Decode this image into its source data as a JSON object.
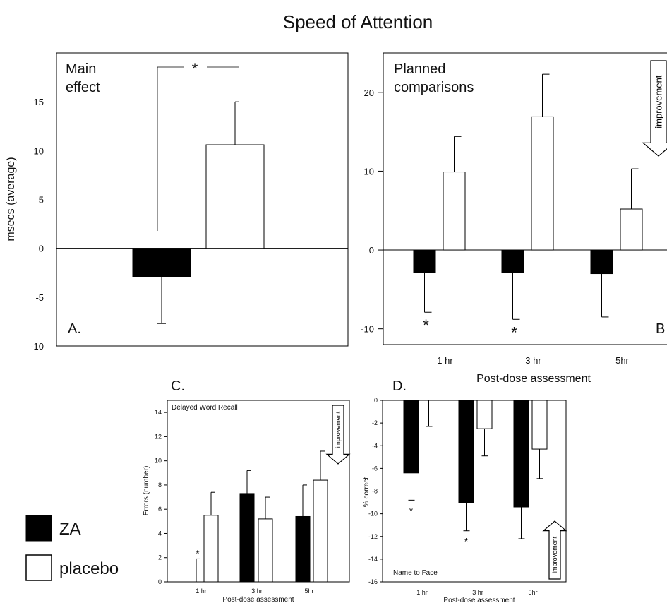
{
  "figure_title": "Speed of Attention",
  "legend": {
    "items": [
      {
        "label": "ZA",
        "color": "#000000"
      },
      {
        "label": "placebo",
        "color": "#ffffff"
      }
    ]
  },
  "improvement_label": "improvement",
  "chart_data": [
    {
      "id": "A",
      "type": "bar",
      "panel_letter": "A.",
      "annotation": "Main\neffect",
      "ylabel": "msecs (average)",
      "ylim": [
        -10,
        20
      ],
      "yticks": [
        -10,
        -5,
        0,
        5,
        10,
        15
      ],
      "categories": [
        ""
      ],
      "series": [
        {
          "name": "ZA",
          "values": [
            -2.9
          ],
          "error": [
            4.8
          ]
        },
        {
          "name": "placebo",
          "values": [
            10.6
          ],
          "error": [
            4.4
          ]
        }
      ],
      "significance": "*"
    },
    {
      "id": "B",
      "type": "bar",
      "panel_letter": "B",
      "annotation": "Planned\ncomparisons",
      "xlabel": "Post-dose assessment",
      "ylim": [
        -12,
        25
      ],
      "yticks": [
        -10,
        0,
        10,
        20
      ],
      "categories": [
        "1 hr",
        "3 hr",
        "5hr"
      ],
      "series": [
        {
          "name": "ZA",
          "values": [
            -2.9,
            -2.9,
            -3.0
          ],
          "error": [
            5.0,
            5.9,
            5.5
          ]
        },
        {
          "name": "placebo",
          "values": [
            9.9,
            16.9,
            5.2
          ],
          "error": [
            4.5,
            5.4,
            5.1
          ]
        }
      ],
      "markers": [
        "*",
        "*",
        ""
      ],
      "improvement": "down"
    },
    {
      "id": "C",
      "type": "bar",
      "panel_letter": "C.",
      "annotation": "Delayed Word Recall",
      "ylabel": "Errors (number)",
      "xlabel": "Post-dose assessment",
      "ylim": [
        0,
        15
      ],
      "yticks": [
        0,
        2,
        4,
        6,
        8,
        10,
        12,
        14
      ],
      "categories": [
        "1 hr",
        "3 hr",
        "5hr"
      ],
      "series": [
        {
          "name": "ZA",
          "values": [
            0,
            7.3,
            5.4
          ],
          "error": [
            1.9,
            1.9,
            2.6
          ]
        },
        {
          "name": "placebo",
          "values": [
            5.5,
            5.2,
            8.4
          ],
          "error": [
            1.9,
            1.8,
            2.4
          ]
        }
      ],
      "markers": [
        "*",
        "",
        ""
      ],
      "improvement": "down"
    },
    {
      "id": "D",
      "type": "bar",
      "panel_letter": "D.",
      "annotation": "Name to Face",
      "ylabel": "% correct",
      "xlabel": "Post-dose assessment",
      "ylim": [
        -16,
        0
      ],
      "yticks": [
        0,
        -2,
        -4,
        -6,
        -8,
        -10,
        -12,
        -14,
        -16
      ],
      "categories": [
        "1 hr",
        "3 hr",
        "5hr"
      ],
      "series": [
        {
          "name": "ZA",
          "values": [
            -6.4,
            -9.0,
            -9.4
          ],
          "error": [
            2.4,
            2.5,
            2.8
          ]
        },
        {
          "name": "placebo",
          "values": [
            0,
            -2.5,
            -4.3
          ],
          "error": [
            2.3,
            2.4,
            2.6
          ]
        }
      ],
      "markers": [
        "*",
        "*",
        ""
      ],
      "improvement": "up"
    }
  ]
}
